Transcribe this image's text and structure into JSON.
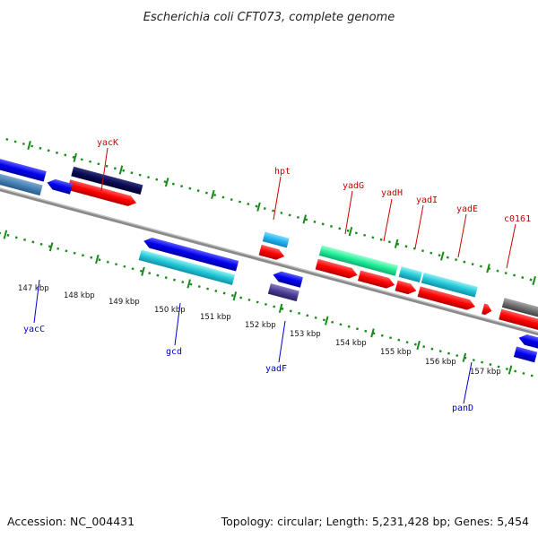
{
  "title": "Escherichia coli CFT073, complete genome",
  "footer": {
    "accession": "Accession: NC_004431",
    "summary": "Topology: circular; Length: 5,231,428 bp; Genes: 5,454"
  },
  "ruler": {
    "unit": "kbp",
    "ticks": [
      "147 kbp",
      "148 kbp",
      "149 kbp",
      "150 kbp",
      "151 kbp",
      "152 kbp",
      "153 kbp",
      "154 kbp",
      "155 kbp",
      "156 kbp",
      "157 kbp"
    ]
  },
  "genes_top": [
    "yacK",
    "hpt",
    "yadG",
    "yadH",
    "yadI",
    "yadE",
    "c0161"
  ],
  "genes_bottom": [
    "yacC",
    "gcd",
    "yadF",
    "panD"
  ],
  "colors": {
    "forward_label": "#cc0000",
    "reverse_label": "#0000cc",
    "dotted_track": "#1a8a1a",
    "backbone": "#8a8a8a"
  }
}
